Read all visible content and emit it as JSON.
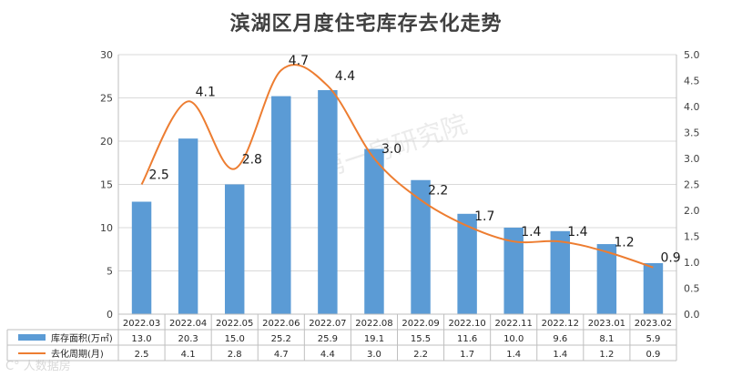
{
  "title": "滨湖区月度住宅库存去化走势",
  "watermark": "第一房研究院",
  "watermark_corner": "C° 人数据房",
  "colors": {
    "bar": "#5b9bd5",
    "line": "#ed7d31",
    "grid": "#d9d9d9",
    "axis": "#bfbfbf"
  },
  "chart_data": {
    "type": "bar+line",
    "title": "滨湖区月度住宅库存去化走势",
    "categories": [
      "2022.03",
      "2022.04",
      "2022.05",
      "2022.06",
      "2022.07",
      "2022.08",
      "2022.09",
      "2022.10",
      "2022.11",
      "2022.12",
      "2023.01",
      "2023.02"
    ],
    "series": [
      {
        "name": "库存面积(万㎡)",
        "type": "bar",
        "axis": "left",
        "values": [
          13.0,
          20.3,
          15.0,
          25.2,
          25.9,
          19.1,
          15.5,
          11.6,
          10.0,
          9.6,
          8.1,
          5.9
        ],
        "labels": [
          "13.0",
          "20.3",
          "15.0",
          "25.2",
          "25.9",
          "19.1",
          "15.5",
          "11.6",
          "10.0",
          "9.6",
          "8.1",
          "5.9"
        ]
      },
      {
        "name": "去化周期(月)",
        "type": "line",
        "axis": "right",
        "values": [
          2.5,
          4.1,
          2.8,
          4.7,
          4.4,
          3.0,
          2.2,
          1.7,
          1.4,
          1.4,
          1.2,
          0.9
        ],
        "labels": [
          "2.5",
          "4.1",
          "2.8",
          "4.7",
          "4.4",
          "3.0",
          "2.2",
          "1.7",
          "1.4",
          "1.4",
          "1.2",
          "0.9"
        ]
      }
    ],
    "y_left": {
      "min": 0,
      "max": 30,
      "step": 5,
      "ticks": [
        "0",
        "5",
        "10",
        "15",
        "20",
        "25",
        "30"
      ]
    },
    "y_right": {
      "min": 0,
      "max": 5,
      "step": 0.5,
      "ticks": [
        "0.0",
        "0.5",
        "1.0",
        "1.5",
        "2.0",
        "2.5",
        "3.0",
        "3.5",
        "4.0",
        "4.5",
        "5.0"
      ]
    },
    "grid": true,
    "legend": "data-table"
  }
}
